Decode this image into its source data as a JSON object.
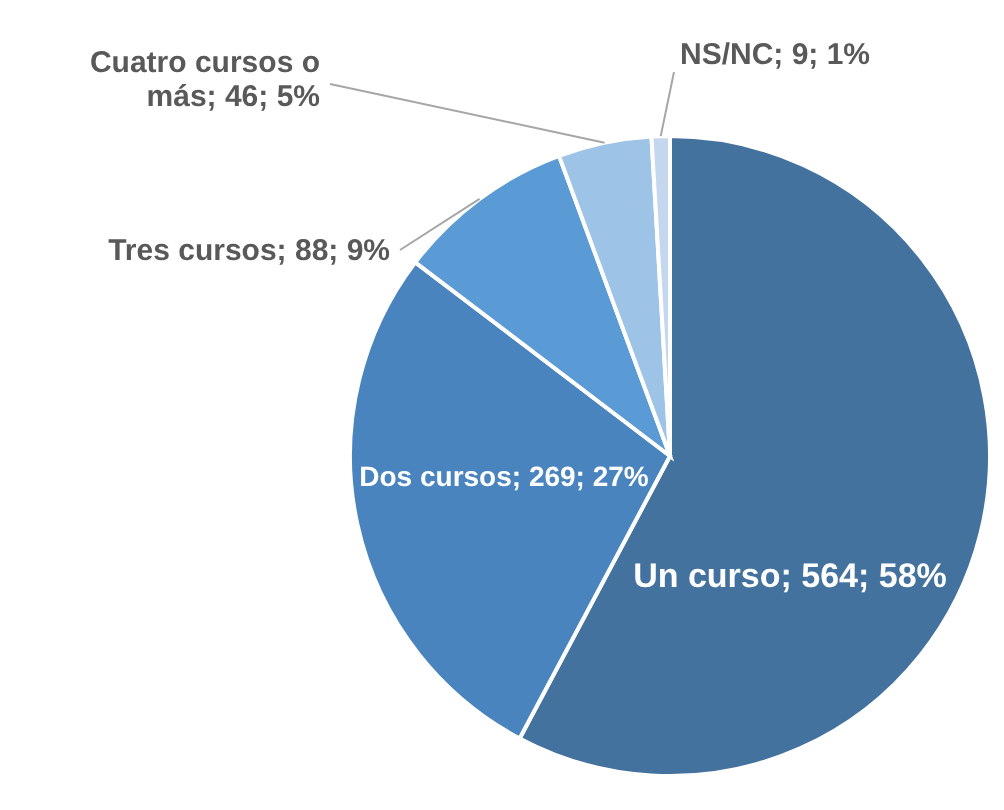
{
  "chart_data": {
    "type": "pie",
    "categories": [
      "Un curso",
      "Dos cursos",
      "Tres cursos",
      "Cuatro cursos o más",
      "NS/NC"
    ],
    "values": [
      564,
      269,
      88,
      46,
      9
    ],
    "value_labels": [
      "564; 58%",
      "269; 27%",
      "88; 9%",
      "46; 5%",
      "9; 1%"
    ],
    "colors": [
      "#44729e",
      "#4a84bf",
      "#5b9bd5",
      "#9dc3e6",
      "#c5d7ee"
    ]
  }
}
